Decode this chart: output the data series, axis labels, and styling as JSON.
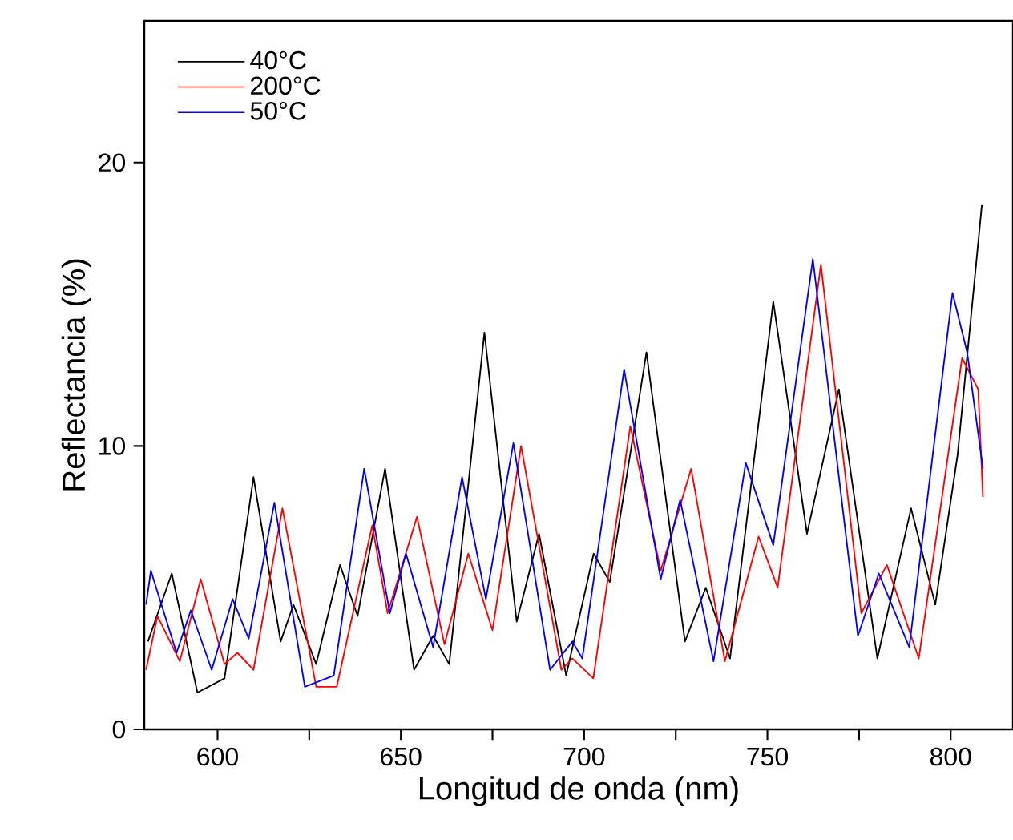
{
  "chart_data": {
    "type": "line",
    "xlabel": "Longitud de onda (nm)",
    "ylabel": "Reflectancia (%)",
    "xlim": [
      580,
      817
    ],
    "ylim": [
      0,
      25
    ],
    "xticks": [
      600,
      {
        "value": 625,
        "label": null
      },
      650,
      {
        "value": 675,
        "label": null
      },
      700,
      {
        "value": 725,
        "label": null
      },
      750,
      {
        "value": 775,
        "label": null
      },
      800
    ],
    "yticks": [
      0,
      10,
      20
    ],
    "legend": "top left",
    "grid": false,
    "series": [
      {
        "name": "40°C",
        "color": "#000000",
        "x": [
          581,
          587.5,
          594.5,
          601.9,
          609.8,
          617.2,
          620.7,
          626.9,
          633.4,
          638.2,
          645.7,
          653.6,
          658.8,
          663.2,
          672.8,
          681.6,
          687.7,
          695.1,
          702.6,
          707.0,
          717.0,
          727.5,
          733.2,
          739.8,
          751.6,
          760.8,
          769.5,
          780.0,
          789.2,
          795.8,
          801.9,
          808.5
        ],
        "values": [
          3.1,
          5.5,
          1.3,
          1.8,
          8.9,
          3.1,
          4.4,
          2.3,
          5.8,
          4.0,
          9.2,
          2.1,
          3.3,
          2.3,
          14.0,
          3.8,
          6.9,
          1.9,
          6.2,
          5.2,
          13.3,
          3.1,
          5.0,
          2.5,
          15.1,
          6.9,
          12.0,
          2.5,
          7.8,
          4.4,
          9.7,
          18.5
        ]
      },
      {
        "name": "200°C",
        "color": "#ff0000",
        "x": [
          580.5,
          583.6,
          589.7,
          595.4,
          601.9,
          605.4,
          609.8,
          617.7,
          626.9,
          632.5,
          642.2,
          646.4,
          654.4,
          661.9,
          668.4,
          675.0,
          682.8,
          693.8,
          696.8,
          702.5,
          712.6,
          720.9,
          729.2,
          738.4,
          747.6,
          752.8,
          764.6,
          775.6,
          782.6,
          791.3,
          803.1,
          807.5,
          808.8
        ],
        "values": [
          2.1,
          4.0,
          2.4,
          5.3,
          2.3,
          2.7,
          2.1,
          7.8,
          1.5,
          1.5,
          7.2,
          4.1,
          7.5,
          3.0,
          6.2,
          3.5,
          10.0,
          2.1,
          2.5,
          1.8,
          10.7,
          5.6,
          9.2,
          2.4,
          6.8,
          5.0,
          16.4,
          4.1,
          5.8,
          2.5,
          13.1,
          12.0,
          8.2
        ]
      },
      {
        "name": "50°C",
        "color": "#0000ff",
        "x": [
          580.5,
          581.8,
          588.8,
          592.7,
          598.4,
          604.1,
          608.5,
          615.5,
          623.8,
          631.7,
          640.0,
          647.0,
          651.4,
          658.8,
          666.7,
          673.2,
          680.7,
          690.7,
          696.8,
          699.5,
          710.9,
          720.9,
          726.2,
          735.3,
          744.1,
          751.6,
          762.4,
          774.7,
          780.4,
          788.7,
          800.5,
          804.5,
          808.8
        ],
        "values": [
          4.4,
          5.6,
          2.7,
          4.2,
          2.1,
          4.6,
          3.2,
          8.0,
          1.5,
          1.9,
          9.2,
          4.1,
          6.2,
          2.9,
          8.9,
          4.6,
          10.1,
          2.1,
          3.1,
          2.5,
          12.7,
          5.3,
          8.1,
          2.4,
          9.4,
          6.5,
          16.6,
          3.3,
          5.5,
          2.9,
          15.4,
          13.3,
          9.2
        ]
      }
    ]
  }
}
